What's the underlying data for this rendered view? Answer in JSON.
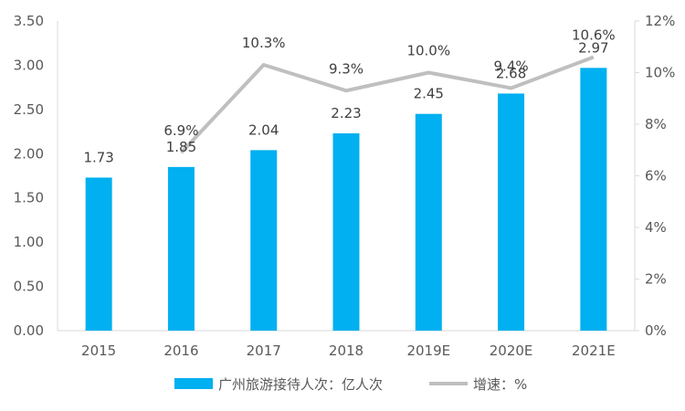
{
  "chart_data": {
    "type": "bar",
    "categories": [
      "2015",
      "2016",
      "2017",
      "2018",
      "2019E",
      "2020E",
      "2021E"
    ],
    "series": [
      {
        "name": "广州旅游接待人次：亿人次",
        "type": "bar",
        "axis": "left",
        "color": "#00B0F0",
        "values": [
          1.73,
          1.85,
          2.04,
          2.23,
          2.45,
          2.68,
          2.97
        ],
        "labels": [
          "1.73",
          "1.85",
          "2.04",
          "2.23",
          "2.45",
          "2.68",
          "2.97"
        ]
      },
      {
        "name": "增速：%",
        "type": "line",
        "axis": "right",
        "color": "#BFBFBF",
        "values": [
          null,
          6.9,
          10.3,
          9.3,
          10.0,
          9.4,
          10.6
        ],
        "labels": [
          "",
          "6.9%",
          "10.3%",
          "9.3%",
          "10.0%",
          "9.4%",
          "10.6%"
        ]
      }
    ],
    "y_left": {
      "range": [
        0,
        3.5
      ],
      "ticks": [
        0,
        0.5,
        1.0,
        1.5,
        2.0,
        2.5,
        3.0,
        3.5
      ],
      "tick_labels": [
        "0.00",
        "0.50",
        "1.00",
        "1.50",
        "2.00",
        "2.50",
        "3.00",
        "3.50"
      ]
    },
    "y_right": {
      "range": [
        0,
        12
      ],
      "ticks": [
        0,
        2,
        4,
        6,
        8,
        10,
        12
      ],
      "tick_labels": [
        "0%",
        "2%",
        "4%",
        "6%",
        "8%",
        "10%",
        "12%"
      ]
    },
    "grid": false,
    "legend_position": "bottom-center"
  }
}
